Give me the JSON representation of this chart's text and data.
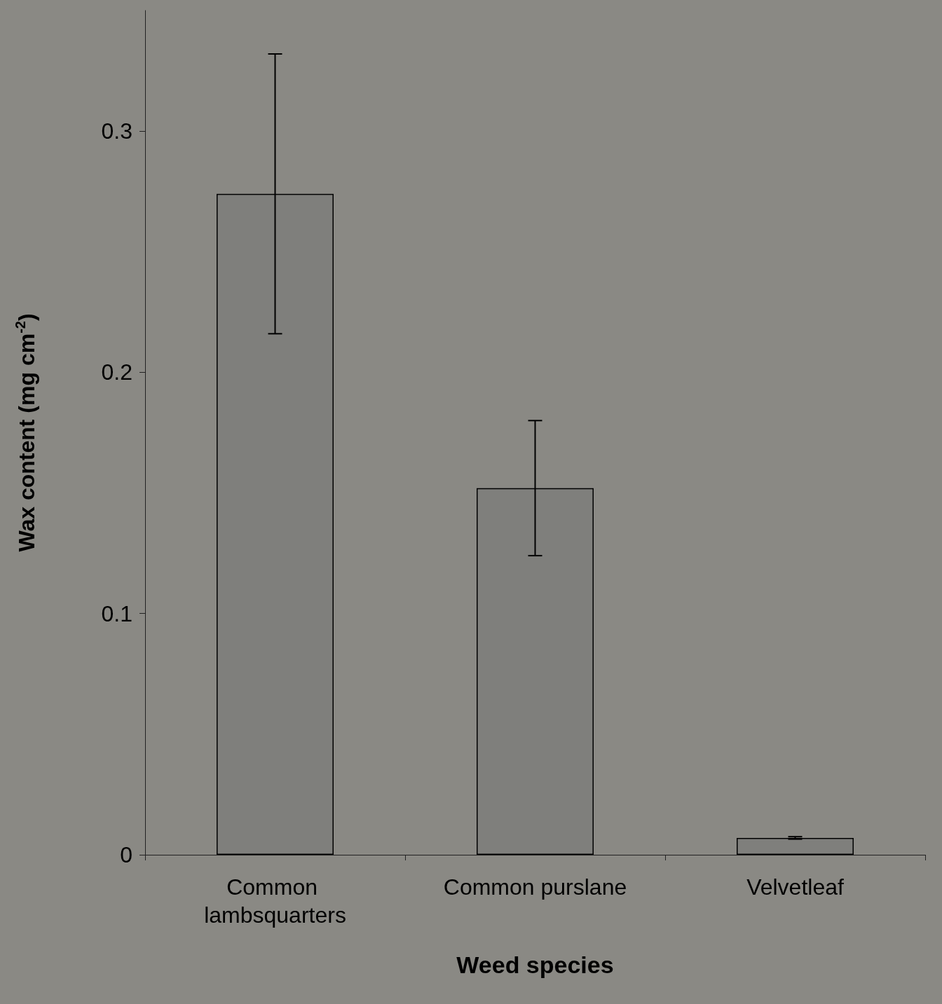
{
  "chart_data": {
    "type": "bar",
    "categories": [
      "Common lambsquarters",
      "Common purslane",
      "Velvetleaf"
    ],
    "values": [
      0.274,
      0.152,
      0.007
    ],
    "errors": [
      0.058,
      0.028,
      0.0005
    ],
    "color": "#7f7f7c",
    "xlabel": "Weed species",
    "ylabel": "Wax content (mg cm$^{-2}$)",
    "ylim": [
      0,
      0.35
    ],
    "yticks": [
      0,
      0.1,
      0.2,
      0.3
    ],
    "grid": false
  }
}
